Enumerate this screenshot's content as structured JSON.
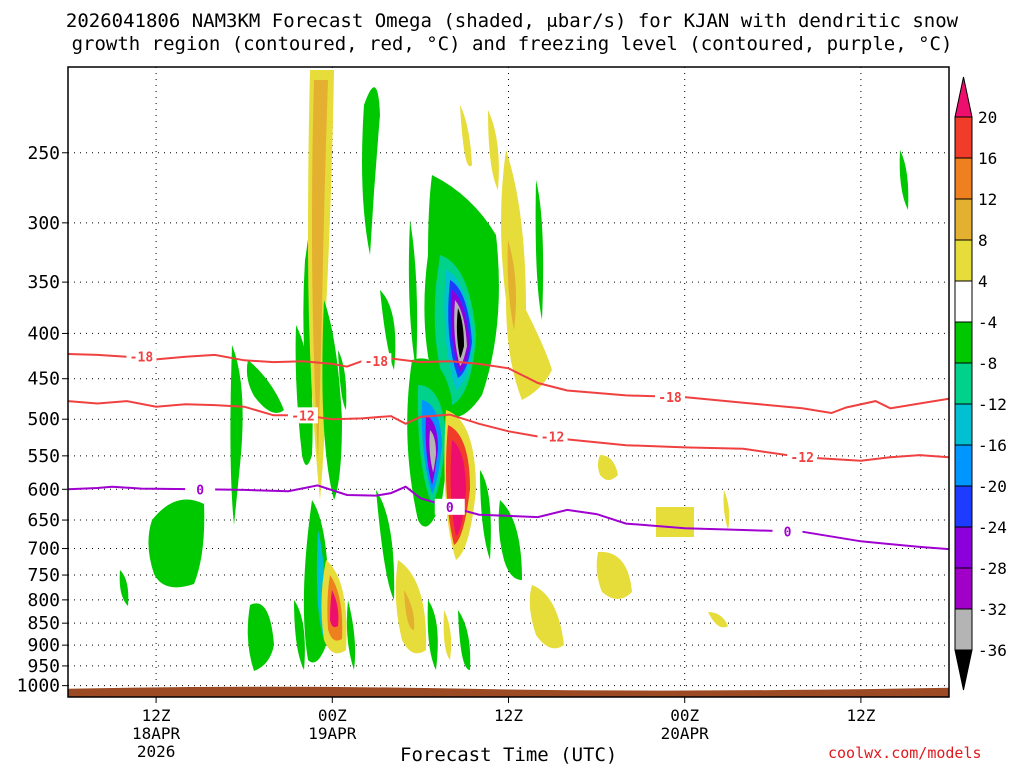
{
  "title": {
    "line1": "2026041806 NAM3KM Forecast Omega (shaded, μbar/s) for KJAN with dendritic snow",
    "line2": "growth region (contoured, red, °C) and freezing level (contoured, purple, °C)"
  },
  "credit": "coolwx.com/models",
  "chart_data": {
    "type": "heatmap",
    "title": "2026041806 NAM3KM Forecast Omega (shaded, μbar/s) for KJAN with dendritic snow growth region (contoured, red, °C) and freezing level (contoured, purple, °C)",
    "xlabel": "Forecast Time (UTC)",
    "ylabel": "",
    "y_axis": {
      "scale": "log-pressure",
      "range_hpa": [
        1030,
        200
      ],
      "ticks": [
        250,
        300,
        350,
        400,
        450,
        500,
        550,
        600,
        650,
        700,
        750,
        800,
        850,
        900,
        950,
        1000
      ]
    },
    "x_axis": {
      "range_hours": [
        0,
        60
      ],
      "ticks": [
        {
          "hour": 6,
          "label": "12Z",
          "sub1": "18APR",
          "sub2": "2026"
        },
        {
          "hour": 18,
          "label": "00Z",
          "sub1": "19APR",
          "sub2": ""
        },
        {
          "hour": 30,
          "label": "12Z",
          "sub1": "",
          "sub2": ""
        },
        {
          "hour": 42,
          "label": "00Z",
          "sub1": "20APR",
          "sub2": ""
        },
        {
          "hour": 54,
          "label": "12Z",
          "sub1": "",
          "sub2": ""
        }
      ]
    },
    "grid": true,
    "colorbar": {
      "labels": [
        "20",
        "16",
        "12",
        "8",
        "4",
        "-4",
        "-8",
        "-12",
        "-16",
        "-20",
        "-24",
        "-28",
        "-32",
        "-36"
      ],
      "colors": [
        "#ee0e6e",
        "#f03c28",
        "#ef8020",
        "#e4b030",
        "#e6dc3a",
        "#ffffff",
        "#00c800",
        "#00d28c",
        "#00c0d2",
        "#0096ff",
        "#1e3cff",
        "#8c00dc",
        "#a000c8",
        "#b4b4b4",
        "#000000"
      ]
    },
    "contours": [
      {
        "name": "-18",
        "color": "#f04040",
        "label_hours": [
          5,
          21,
          41
        ],
        "points": [
          [
            0,
            422
          ],
          [
            2,
            423
          ],
          [
            4,
            425
          ],
          [
            6,
            428
          ],
          [
            8,
            425
          ],
          [
            10,
            423
          ],
          [
            12,
            429
          ],
          [
            14,
            431
          ],
          [
            16,
            430
          ],
          [
            18,
            433
          ],
          [
            19,
            436
          ],
          [
            20,
            430
          ],
          [
            22,
            427
          ],
          [
            24,
            431
          ],
          [
            26,
            430
          ],
          [
            28,
            433
          ],
          [
            30,
            438
          ],
          [
            32,
            455
          ],
          [
            34,
            464
          ],
          [
            38,
            470
          ],
          [
            42,
            472
          ],
          [
            46,
            479
          ],
          [
            50,
            486
          ],
          [
            52,
            492
          ],
          [
            53,
            485
          ],
          [
            55,
            477
          ],
          [
            56,
            486
          ],
          [
            58,
            480
          ],
          [
            60,
            474
          ]
        ]
      },
      {
        "name": "-12",
        "color": "#f04040",
        "label_hours": [
          16,
          33,
          50
        ],
        "points": [
          [
            0,
            477
          ],
          [
            2,
            480
          ],
          [
            4,
            477
          ],
          [
            6,
            484
          ],
          [
            8,
            481
          ],
          [
            10,
            482
          ],
          [
            12,
            484
          ],
          [
            14,
            495
          ],
          [
            16,
            495
          ],
          [
            18,
            500
          ],
          [
            20,
            499
          ],
          [
            22,
            496
          ],
          [
            23,
            506
          ],
          [
            24,
            497
          ],
          [
            26,
            494
          ],
          [
            28,
            506
          ],
          [
            30,
            516
          ],
          [
            32,
            523
          ],
          [
            34,
            527
          ],
          [
            38,
            535
          ],
          [
            42,
            538
          ],
          [
            46,
            540
          ],
          [
            50,
            552
          ],
          [
            54,
            557
          ],
          [
            56,
            552
          ],
          [
            58,
            549
          ],
          [
            60,
            552
          ]
        ]
      },
      {
        "name": "0",
        "color": "#a000d0",
        "label_hours": [
          9,
          26,
          49
        ],
        "points": [
          [
            0,
            600
          ],
          [
            2,
            598
          ],
          [
            3,
            596
          ],
          [
            5,
            599
          ],
          [
            9,
            600
          ],
          [
            12,
            601
          ],
          [
            15,
            603
          ],
          [
            17,
            594
          ],
          [
            19,
            609
          ],
          [
            21,
            610
          ],
          [
            22,
            606
          ],
          [
            23,
            596
          ],
          [
            24,
            614
          ],
          [
            26,
            628
          ],
          [
            28,
            641
          ],
          [
            32,
            645
          ],
          [
            34,
            633
          ],
          [
            36,
            640
          ],
          [
            38,
            656
          ],
          [
            42,
            664
          ],
          [
            46,
            667
          ],
          [
            50,
            670
          ],
          [
            54,
            687
          ],
          [
            58,
            697
          ],
          [
            60,
            701
          ]
        ]
      }
    ]
  }
}
